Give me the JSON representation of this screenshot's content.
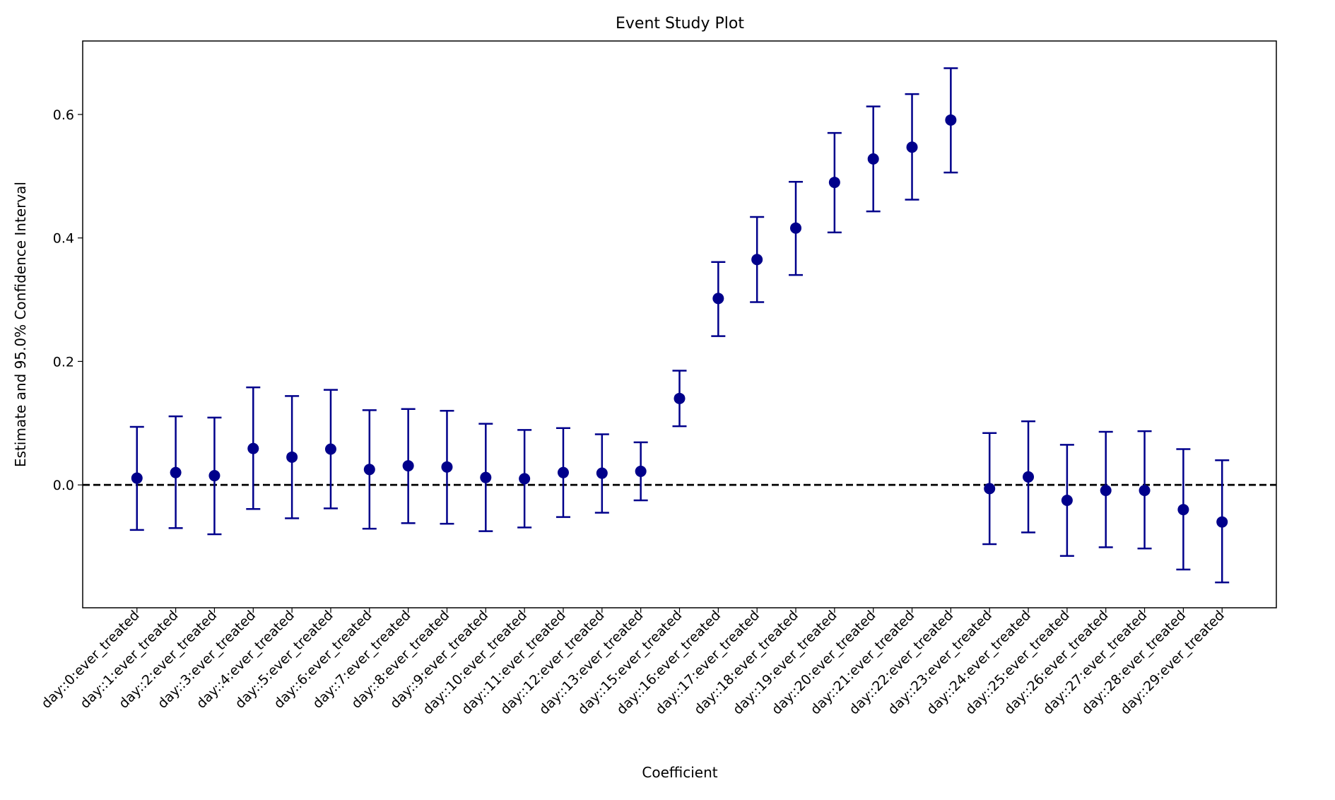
{
  "chart_data": {
    "type": "scatter",
    "subtype": "errorbar",
    "title": "Event Study Plot",
    "xlabel": "Coefficient",
    "ylabel": "Estimate and 95.0% Confidence Interval",
    "categories": [
      "day::0:ever_treated",
      "day::1:ever_treated",
      "day::2:ever_treated",
      "day::3:ever_treated",
      "day::4:ever_treated",
      "day::5:ever_treated",
      "day::6:ever_treated",
      "day::7:ever_treated",
      "day::8:ever_treated",
      "day::9:ever_treated",
      "day::10:ever_treated",
      "day::11:ever_treated",
      "day::12:ever_treated",
      "day::13:ever_treated",
      "day::15:ever_treated",
      "day::16:ever_treated",
      "day::17:ever_treated",
      "day::18:ever_treated",
      "day::19:ever_treated",
      "day::20:ever_treated",
      "day::21:ever_treated",
      "day::22:ever_treated",
      "day::23:ever_treated",
      "day::24:ever_treated",
      "day::25:ever_treated",
      "day::26:ever_treated",
      "day::27:ever_treated",
      "day::28:ever_treated",
      "day::29:ever_treated"
    ],
    "estimates": [
      0.011,
      0.02,
      0.015,
      0.059,
      0.045,
      0.058,
      0.025,
      0.031,
      0.029,
      0.012,
      0.01,
      0.02,
      0.019,
      0.022,
      0.14,
      0.302,
      0.365,
      0.416,
      0.49,
      0.528,
      0.547,
      0.591,
      -0.006,
      0.013,
      -0.025,
      -0.009,
      -0.009,
      -0.04,
      -0.06
    ],
    "ci_lower": [
      -0.073,
      -0.07,
      -0.08,
      -0.039,
      -0.054,
      -0.038,
      -0.071,
      -0.062,
      -0.063,
      -0.075,
      -0.069,
      -0.052,
      -0.045,
      -0.025,
      0.095,
      0.241,
      0.296,
      0.34,
      0.409,
      0.443,
      0.462,
      0.506,
      -0.096,
      -0.077,
      -0.115,
      -0.101,
      -0.103,
      -0.137,
      -0.158
    ],
    "ci_upper": [
      0.094,
      0.111,
      0.109,
      0.158,
      0.144,
      0.154,
      0.121,
      0.123,
      0.12,
      0.099,
      0.089,
      0.092,
      0.082,
      0.069,
      0.185,
      0.361,
      0.434,
      0.491,
      0.57,
      0.613,
      0.633,
      0.675,
      0.084,
      0.103,
      0.065,
      0.086,
      0.087,
      0.058,
      0.04
    ],
    "yticks": [
      0.0,
      0.2,
      0.4,
      0.6
    ],
    "ytick_labels": [
      "0.0",
      "0.2",
      "0.4",
      "0.6"
    ],
    "ylim": [
      -0.199,
      0.719
    ],
    "xlim": [
      -1.4,
      29.4
    ],
    "reference_line": 0,
    "grid": false,
    "colors": {
      "marker": "#00008b",
      "reference": "#000000"
    }
  }
}
